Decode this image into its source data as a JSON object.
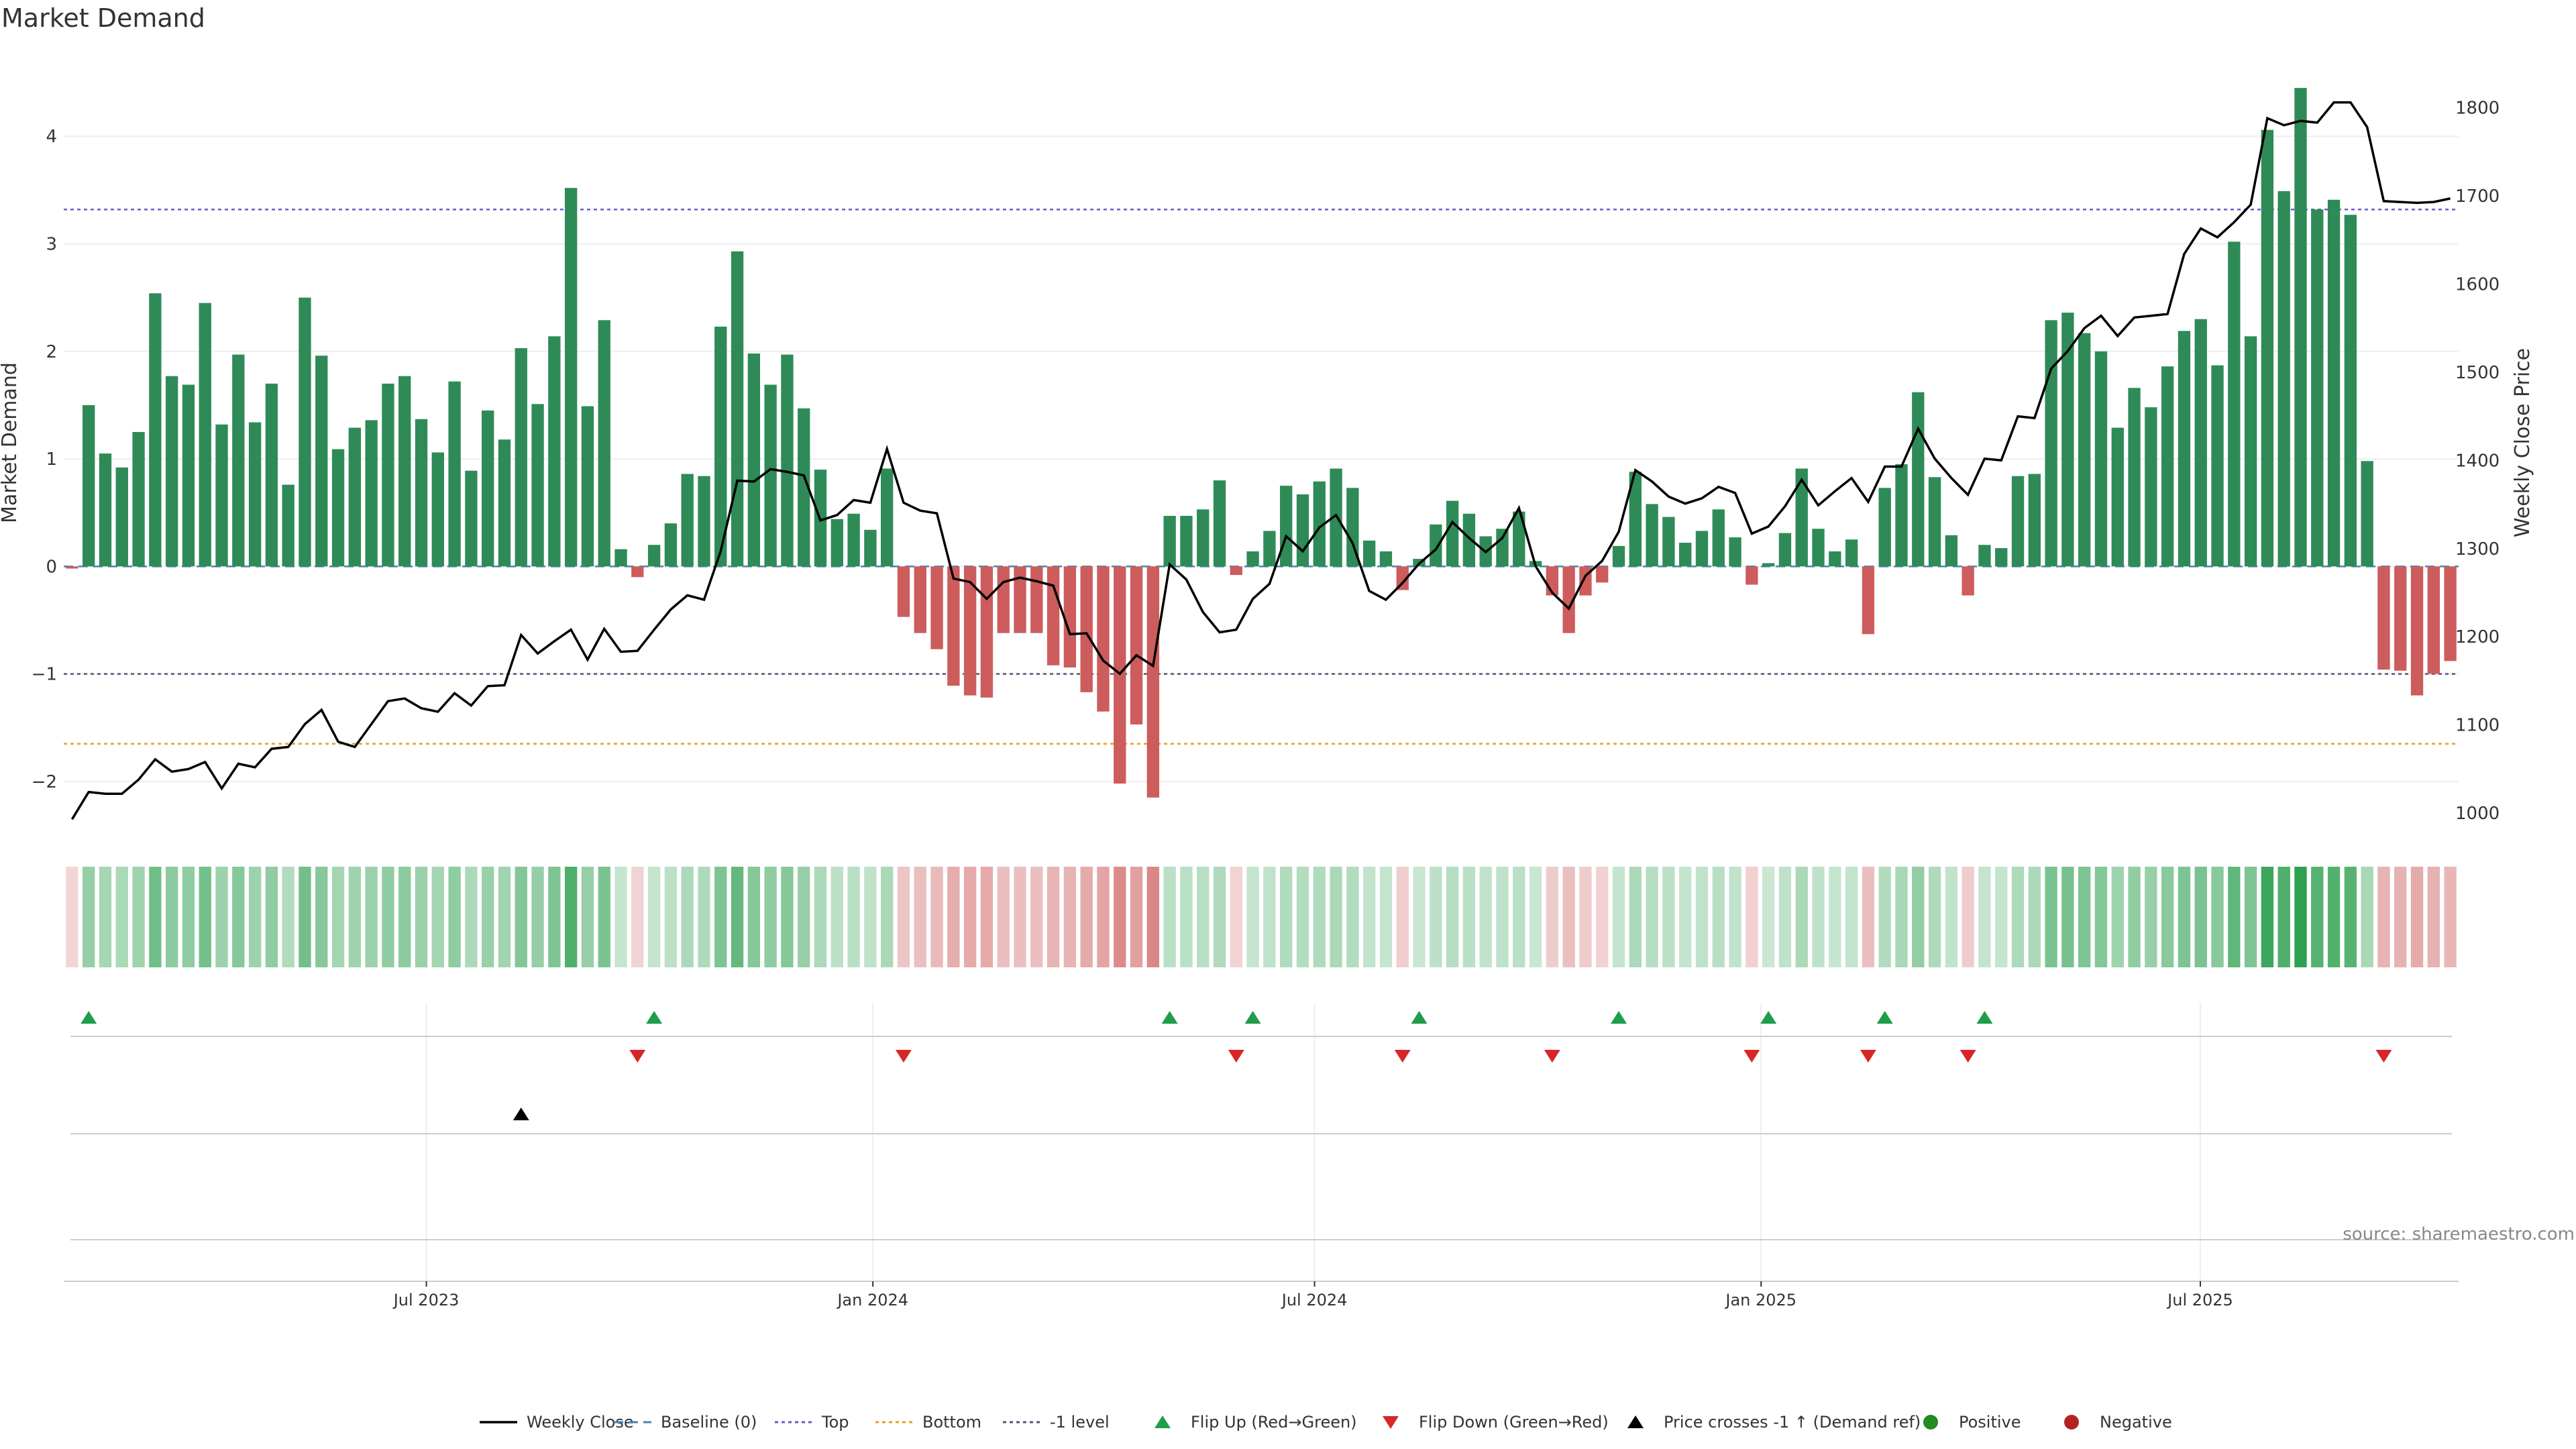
{
  "chart_data": {
    "type": "bar",
    "title": "Market Demand",
    "ylabel": "Market Demand",
    "y2label": "Weekly Close Price",
    "ylim": [
      -2.5,
      4.8
    ],
    "y2lim": [
      975,
      1865
    ],
    "yticks": [
      -2,
      -1,
      0,
      1,
      2,
      3,
      4
    ],
    "y2ticks": [
      1000,
      1100,
      1200,
      1300,
      1400,
      1500,
      1600,
      1700,
      1800
    ],
    "x_start": "2023-02-05",
    "x_end": "2025-10-12",
    "x_ticks": [
      {
        "date": "2023-07-01",
        "label": "Jul 2023"
      },
      {
        "date": "2024-01-01",
        "label": "Jan 2024"
      },
      {
        "date": "2024-07-01",
        "label": "Jul 2024"
      },
      {
        "date": "2025-01-01",
        "label": "Jan 2025"
      },
      {
        "date": "2025-07-01",
        "label": "Jul 2025"
      }
    ],
    "reference_lines": {
      "top": 3.32,
      "bottom": -1.65,
      "minus_one": -1
    },
    "demand": [
      -0.02,
      1.5,
      1.05,
      0.92,
      1.25,
      2.54,
      1.77,
      1.69,
      2.45,
      1.32,
      1.97,
      1.34,
      1.7,
      0.76,
      2.5,
      1.96,
      1.09,
      1.29,
      1.36,
      1.7,
      1.77,
      1.37,
      1.06,
      1.72,
      0.89,
      1.45,
      1.18,
      2.03,
      1.51,
      2.14,
      3.52,
      1.49,
      2.29,
      0.16,
      -0.1,
      0.2,
      0.4,
      0.86,
      0.84,
      2.23,
      2.93,
      1.98,
      1.69,
      1.97,
      1.47,
      0.9,
      0.44,
      0.49,
      0.34,
      0.91,
      -0.47,
      -0.62,
      -0.77,
      -1.11,
      -1.2,
      -1.22,
      -0.62,
      -0.62,
      -0.62,
      -0.92,
      -0.94,
      -1.17,
      -1.35,
      -2.02,
      -1.47,
      -2.15,
      0.47,
      0.47,
      0.53,
      0.8,
      -0.08,
      0.14,
      0.33,
      0.75,
      0.67,
      0.79,
      0.91,
      0.73,
      0.24,
      0.14,
      -0.22,
      0.07,
      0.39,
      0.61,
      0.49,
      0.28,
      0.35,
      0.51,
      0.05,
      -0.27,
      -0.62,
      -0.27,
      -0.15,
      0.19,
      0.88,
      0.58,
      0.46,
      0.22,
      0.33,
      0.53,
      0.27,
      -0.17,
      0.03,
      0.31,
      0.91,
      0.35,
      0.14,
      0.25,
      -0.63,
      0.73,
      0.95,
      1.62,
      0.83,
      0.29,
      -0.27,
      0.2,
      0.17,
      0.84,
      0.86,
      2.29,
      2.36,
      2.17,
      2.0,
      1.29,
      1.66,
      1.48,
      1.86,
      2.19,
      2.3,
      1.87,
      3.02,
      2.14,
      4.06,
      3.49,
      4.45,
      3.32,
      3.41,
      3.27,
      0.98,
      -0.96,
      -0.97,
      -1.2,
      -1.0,
      -0.88
    ],
    "price": [
      993,
      1024,
      1022,
      1022,
      1038,
      1061,
      1047,
      1050,
      1058,
      1028,
      1056,
      1052,
      1073,
      1075,
      1101,
      1117,
      1081,
      1075,
      1101,
      1127,
      1130,
      1119,
      1115,
      1136,
      1122,
      1144,
      1145,
      1202,
      1181,
      1195,
      1208,
      1174,
      1209,
      1183,
      1184,
      1208,
      1231,
      1247,
      1242,
      1297,
      1377,
      1376,
      1390,
      1387,
      1383,
      1332,
      1338,
      1355,
      1352,
      1413,
      1352,
      1343,
      1340,
      1266,
      1262,
      1243,
      1262,
      1267,
      1263,
      1258,
      1203,
      1204,
      1173,
      1158,
      1179,
      1167,
      1282,
      1265,
      1228,
      1205,
      1208,
      1243,
      1260,
      1314,
      1297,
      1324,
      1338,
      1306,
      1252,
      1242,
      1261,
      1283,
      1299,
      1330,
      1312,
      1296,
      1312,
      1346,
      1280,
      1250,
      1232,
      1269,
      1286,
      1319,
      1389,
      1376,
      1359,
      1351,
      1357,
      1370,
      1363,
      1317,
      1325,
      1348,
      1378,
      1349,
      1365,
      1380,
      1353,
      1393,
      1393,
      1436,
      1402,
      1380,
      1361,
      1402,
      1400,
      1450,
      1448,
      1504,
      1524,
      1550,
      1564,
      1541,
      1562,
      1564,
      1566,
      1634,
      1663,
      1653,
      1670,
      1690,
      1788,
      1780,
      1785,
      1783,
      1806,
      1806,
      1778,
      1694,
      1693,
      1692,
      1693,
      1697
    ]
  },
  "legend": {
    "items": [
      {
        "label": "Weekly Close"
      },
      {
        "label": "Baseline (0)"
      },
      {
        "label": "Top"
      },
      {
        "label": "Bottom"
      },
      {
        "label": "-1 level"
      },
      {
        "label": "Flip Up (Red→Green)"
      },
      {
        "label": "Flip Down (Green→Red)"
      },
      {
        "label": "Price crosses -1 ↑ (Demand ref)"
      },
      {
        "label": "Positive"
      },
      {
        "label": "Negative"
      }
    ]
  },
  "source": "source: sharemaestro.com",
  "colors": {
    "positive": "#2e8b57",
    "negative": "#cd5c5c",
    "price_line": "#000000",
    "baseline": "#4682b4",
    "top": "#6a5acd",
    "bottom": "#e5a023",
    "minus_one": "#555577",
    "flip_up": "#1f9d4a",
    "flip_down": "#d62728"
  }
}
